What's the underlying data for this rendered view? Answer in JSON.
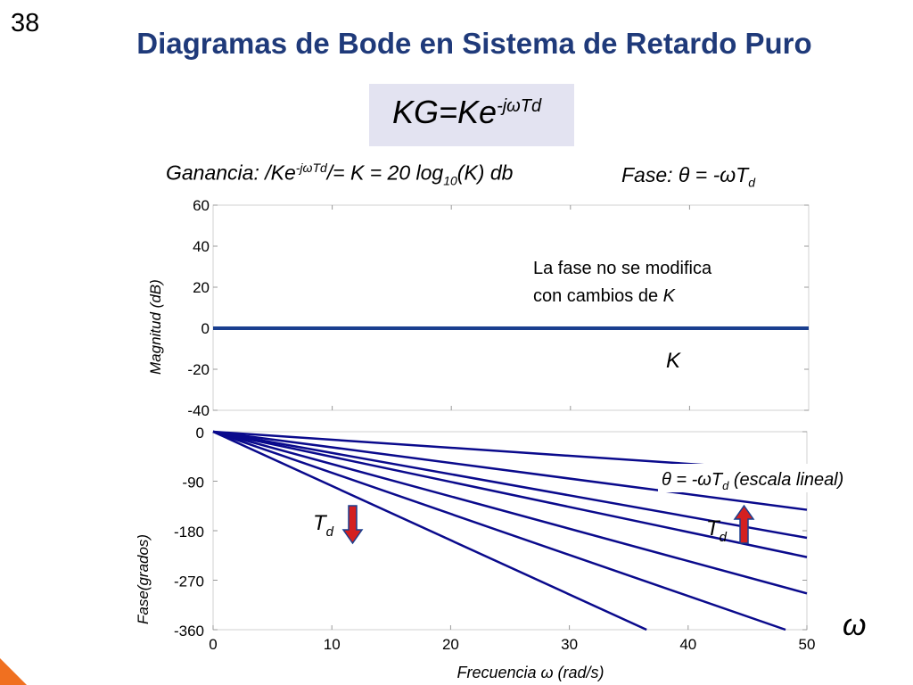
{
  "slide": {
    "number": "38",
    "title": "Diagramas de Bode en Sistema de Retardo Puro"
  },
  "formula": {
    "base": "KG=Ke",
    "exponent": "-jωTd"
  },
  "gain_label": {
    "prefix": "Ganancia: /Ke",
    "exp": "-jωTd",
    "mid": "/= K = 20 log",
    "sub": "10",
    "suffix": "(K) db"
  },
  "phase_label": {
    "prefix": "Fase: θ = -ωT",
    "sub": "d"
  },
  "colors": {
    "title": "#1f3a7a",
    "curve": "#1a3f8f",
    "phase_lines": "#0a0a8c",
    "arrow_fill": "#d42020",
    "arrow_stroke": "#1a3f8f",
    "formula_box": "#e3e3f1"
  },
  "chart_data": [
    {
      "type": "line",
      "ylabel": "Magnitud (dB)",
      "ylim": [
        -40,
        60
      ],
      "yticks": [
        "60",
        "40",
        "20",
        "0",
        "-20",
        "-40"
      ],
      "xlim": [
        0,
        50
      ],
      "grid": true,
      "series": [
        {
          "name": "K",
          "x": [
            0,
            50
          ],
          "y": [
            0,
            0
          ]
        }
      ],
      "annotations": {
        "note_line1": "La fase no se modifica",
        "note_line2": "con cambios de ",
        "note_k": "K",
        "curve_label": "K"
      }
    },
    {
      "type": "line",
      "xlabel": "Frecuencia ω (rad/s)",
      "ylabel": "Fase(grados)",
      "xlim": [
        0,
        50
      ],
      "ylim": [
        -360,
        0
      ],
      "xticks": [
        "0",
        "10",
        "20",
        "30",
        "40",
        "50"
      ],
      "yticks": [
        "0",
        "-90",
        "-180",
        "-270",
        "-360"
      ],
      "grid": true,
      "series": [
        {
          "x": [
            0,
            36.5
          ],
          "y": [
            0,
            -360
          ]
        },
        {
          "x": [
            0,
            48.2
          ],
          "y": [
            0,
            -360
          ]
        },
        {
          "x": [
            0,
            50
          ],
          "y": [
            0,
            -294
          ]
        },
        {
          "x": [
            0,
            50
          ],
          "y": [
            0,
            -228
          ]
        },
        {
          "x": [
            0,
            50
          ],
          "y": [
            0,
            -193
          ]
        },
        {
          "x": [
            0,
            50
          ],
          "y": [
            0,
            -142
          ]
        },
        {
          "x": [
            0,
            50
          ],
          "y": [
            0,
            -73
          ]
        }
      ],
      "annotations": {
        "eq_prefix": "θ = -ωT",
        "eq_sub": "d",
        "eq_suffix": " (escala lineal)",
        "td_main": "T",
        "td_sub": "d",
        "omega": "ω"
      }
    }
  ]
}
